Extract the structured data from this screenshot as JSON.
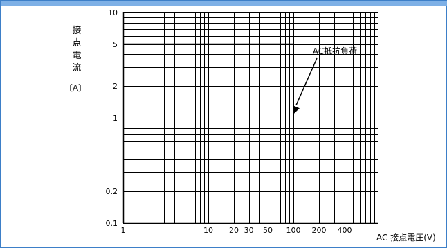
{
  "window": {
    "title": "",
    "accent": "#7eb0e6",
    "border": "#3d7fc8"
  },
  "chart_data": {
    "type": "line",
    "title": "",
    "xlabel": "AC 接点電圧(V)",
    "ylabel_chars": [
      "接",
      "点",
      "電",
      "流"
    ],
    "ylabel_unit": "〔A〕",
    "x_scale": "log",
    "y_scale": "log",
    "xlim": [
      1,
      1000
    ],
    "ylim": [
      0.1,
      10
    ],
    "grid": true,
    "x_tick_labels": [
      {
        "v": 1,
        "label": "1"
      },
      {
        "v": 10,
        "label": "10"
      },
      {
        "v": 20,
        "label": "20"
      },
      {
        "v": 30,
        "label": "30"
      },
      {
        "v": 50,
        "label": "50"
      },
      {
        "v": 100,
        "label": "100"
      },
      {
        "v": 200,
        "label": "200"
      },
      {
        "v": 400,
        "label": "400"
      }
    ],
    "y_tick_labels": [
      {
        "v": 0.1,
        "label": "0.1"
      },
      {
        "v": 0.2,
        "label": "0.2"
      },
      {
        "v": 1,
        "label": "1"
      },
      {
        "v": 2,
        "label": "2"
      },
      {
        "v": 5,
        "label": "5"
      },
      {
        "v": 10,
        "label": "10"
      }
    ],
    "series": [
      {
        "name": "AC抵抗負荷",
        "points": [
          {
            "x": 1,
            "y": 5
          },
          {
            "x": 100,
            "y": 5
          },
          {
            "x": 100,
            "y": 0.1
          }
        ]
      }
    ],
    "annotation": {
      "text": "AC抵抗負荷",
      "points_to": {
        "x": 100,
        "y": 1.1
      }
    }
  }
}
